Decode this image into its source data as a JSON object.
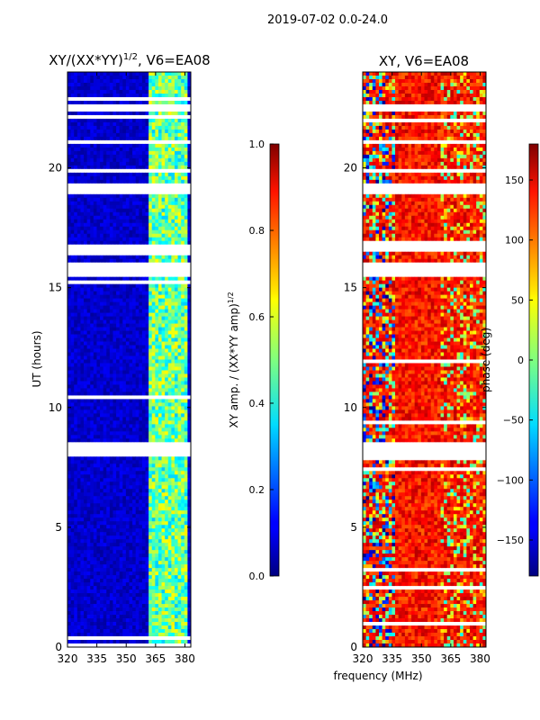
{
  "figure_title": "2019-07-02 0.0-24.0",
  "chart_data": [
    {
      "type": "heatmap",
      "title": "XY/(XX*YY)",
      "title_sup": "1/2",
      "title_suffix": ", V6=EA08",
      "xlabel": "",
      "ylabel": "UT (hours)",
      "xlim": [
        320,
        383
      ],
      "ylim": [
        0,
        24
      ],
      "xticks": [
        320,
        335,
        350,
        365,
        380
      ],
      "yticks": [
        0,
        5,
        10,
        15,
        20
      ],
      "colorbar": {
        "label": "XY amp. / (XX*YY amp)",
        "label_sup": "1/2",
        "range": [
          0.0,
          1.0
        ],
        "ticks": [
          "0.0",
          "0.2",
          "0.4",
          "0.6",
          "0.8",
          "1.0"
        ],
        "colormap": "jet"
      },
      "bright_band_mhz": [
        362,
        381
      ],
      "gaps_hours": [
        [
          7.9,
          8.6
        ],
        [
          18.9,
          19.3
        ],
        [
          19.8,
          20.0
        ],
        [
          15.5,
          16.0
        ],
        [
          16.5,
          16.8
        ],
        [
          21.0,
          21.2
        ],
        [
          22.4,
          22.7
        ]
      ],
      "description_values": "low amplitude (~0.05) below 362 MHz, 0.3-0.6 in 362-381 MHz band"
    },
    {
      "type": "heatmap",
      "title": "XY, V6=EA08",
      "xlabel": "frequency (MHz)",
      "ylabel": "",
      "xlim": [
        320,
        383
      ],
      "ylim": [
        0,
        24
      ],
      "xticks": [
        320,
        335,
        350,
        365,
        380
      ],
      "yticks": [
        0,
        5,
        10,
        15,
        20
      ],
      "colorbar": {
        "label": "phase (deg)",
        "range": [
          -180,
          180
        ],
        "ticks": [
          "150",
          "100",
          "50",
          "0",
          "−50",
          "−100",
          "−150"
        ],
        "tick_values": [
          150,
          100,
          50,
          0,
          -50,
          -100,
          -150
        ],
        "colormap": "jet"
      },
      "gaps_hours": [
        [
          7.9,
          8.6
        ],
        [
          18.9,
          19.3
        ],
        [
          19.8,
          20.0
        ],
        [
          15.5,
          16.0
        ],
        [
          16.5,
          16.8
        ],
        [
          21.0,
          21.2
        ],
        [
          22.4,
          22.7
        ]
      ],
      "description_values": "phase mostly 100-160 deg with noisy low-frequency edge"
    }
  ]
}
